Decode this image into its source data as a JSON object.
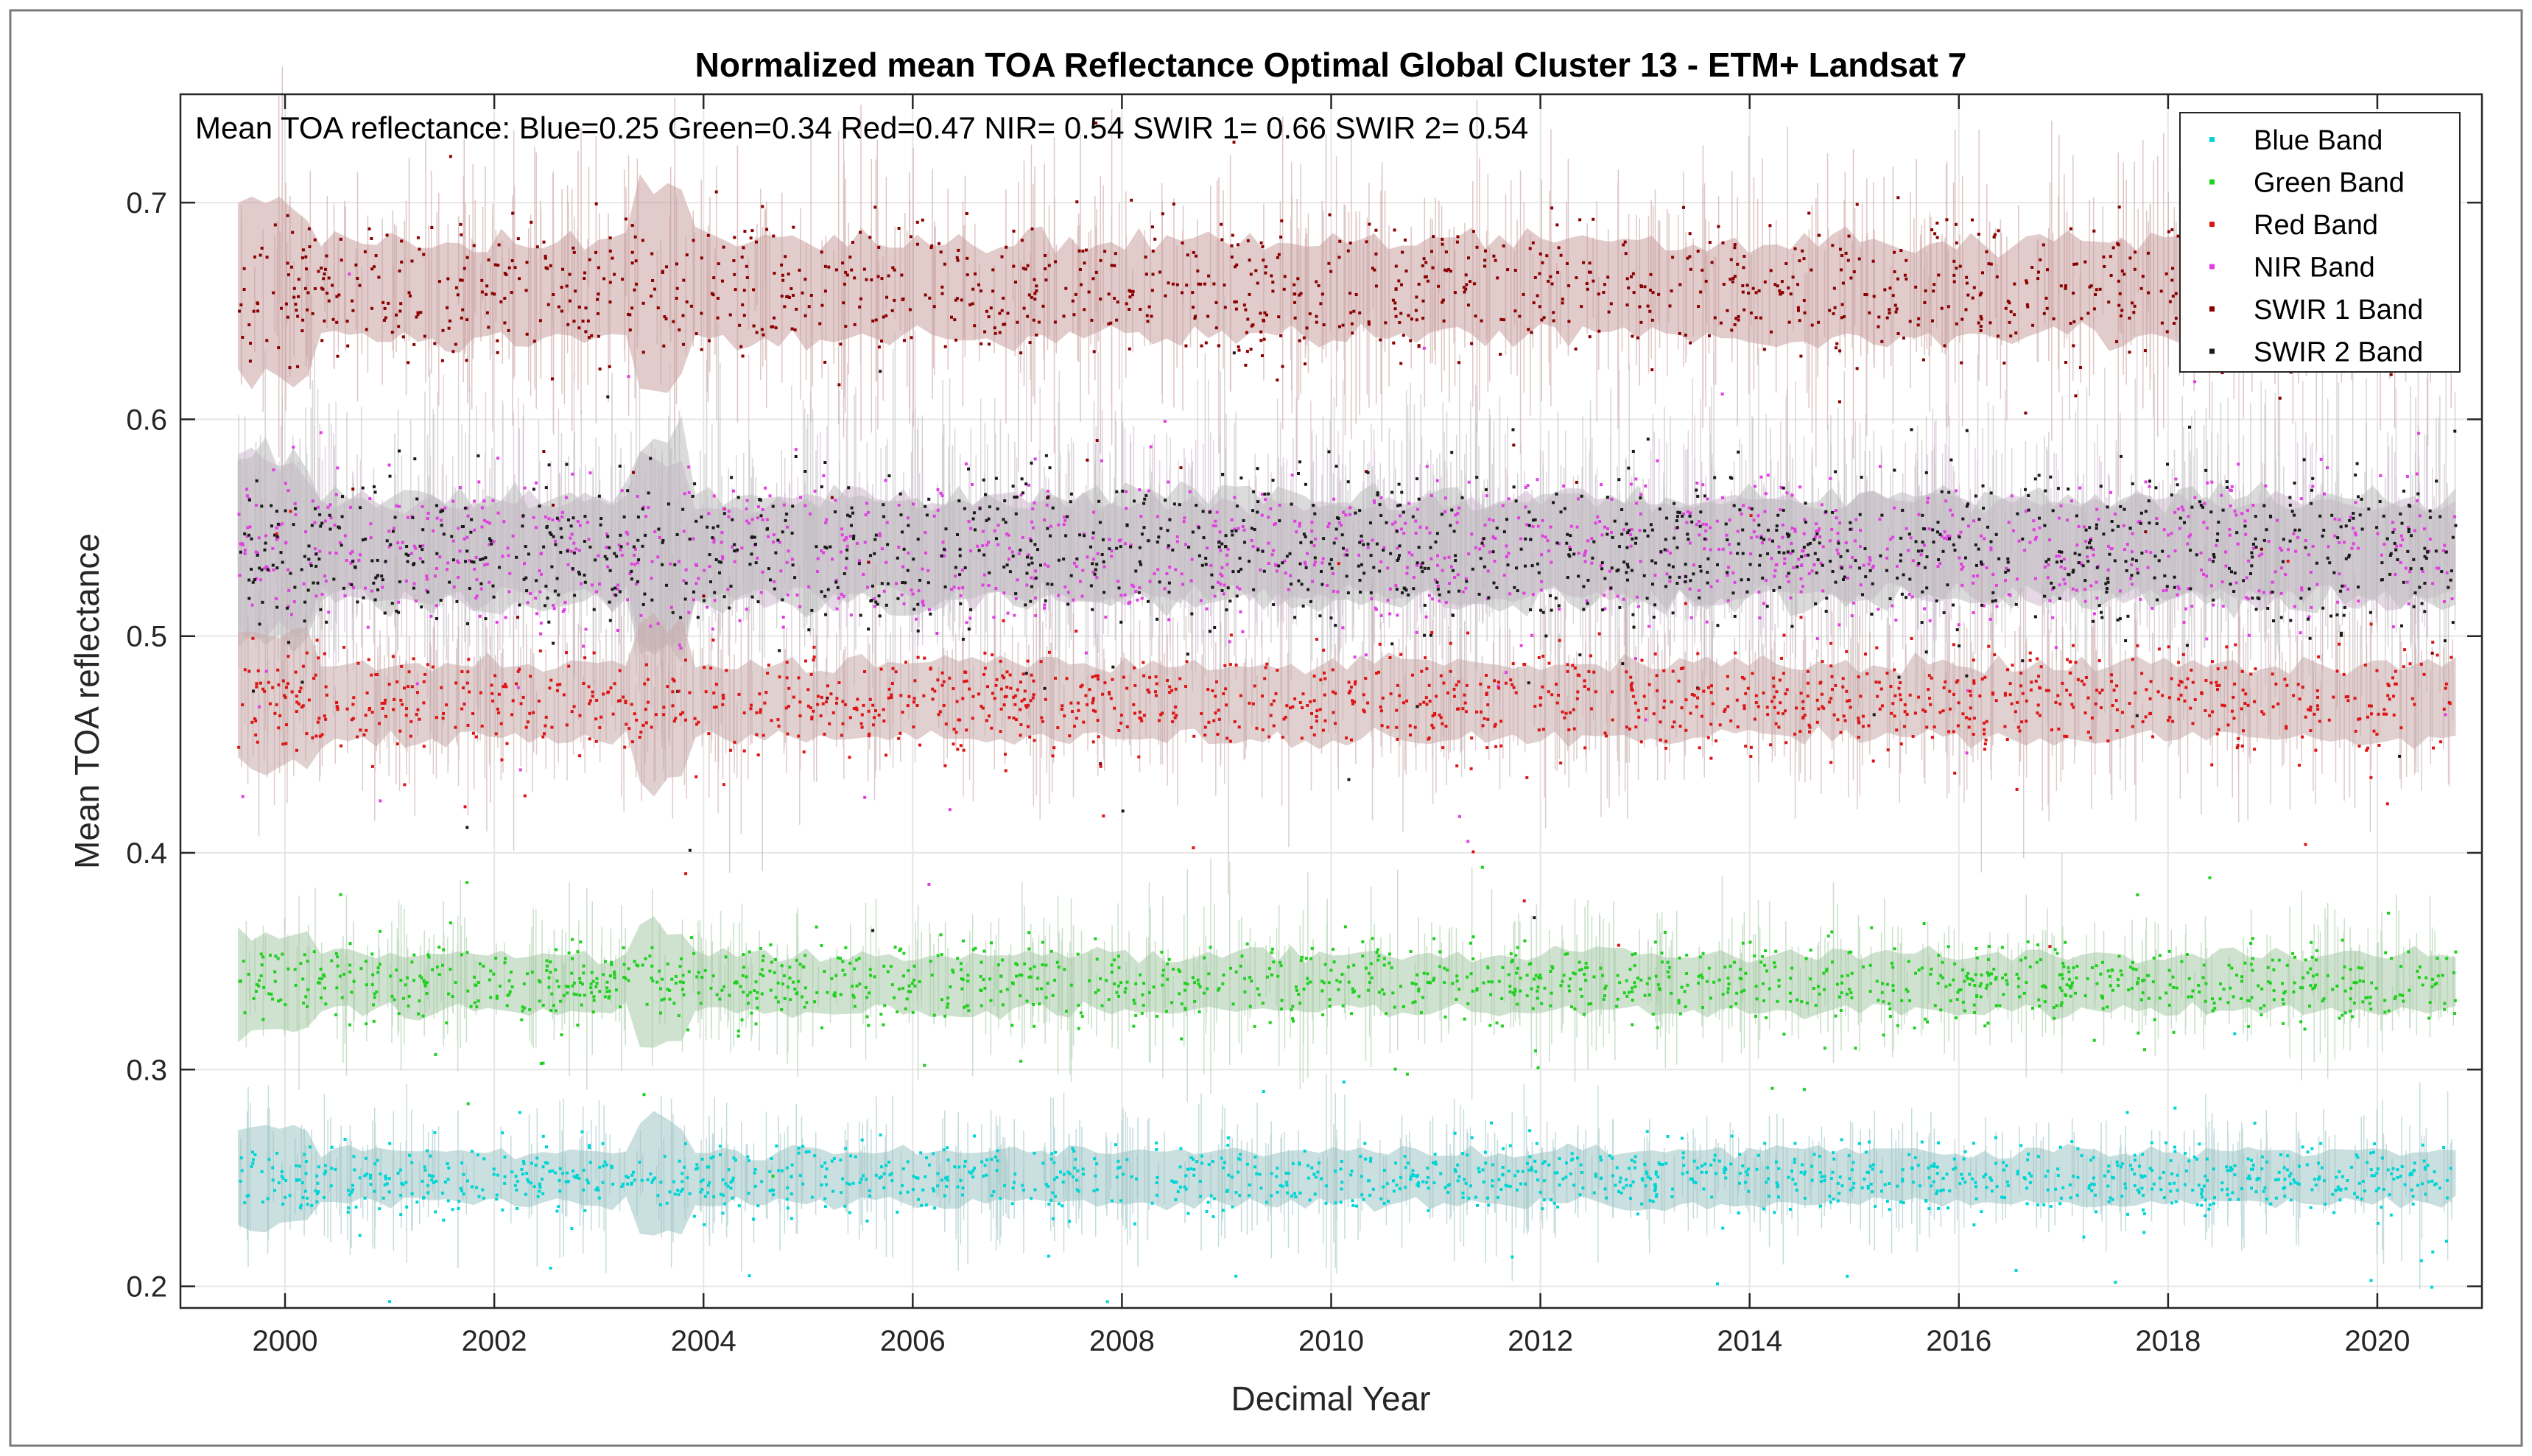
{
  "chart_data": {
    "type": "scatter",
    "title": "Normalized mean TOA Reflectance Optimal Global Cluster 13 -  ETM+ Landsat 7",
    "annotation": "Mean TOA reflectance: Blue=0.25  Green=0.34  Red=0.47  NIR= 0.54  SWIR 1= 0.66  SWIR 2= 0.54",
    "xlabel": "Decimal Year",
    "ylabel": "Mean TOA reflectance",
    "xlim": [
      1999.0,
      2021.0
    ],
    "ylim": [
      0.19,
      0.75
    ],
    "data_range": [
      1999.55,
      2020.75
    ],
    "grid": true,
    "legend_position": "top-right",
    "x_ticks": [
      2000,
      2002,
      2004,
      2006,
      2008,
      2010,
      2012,
      2014,
      2016,
      2018,
      2020
    ],
    "x_tick_labels": [
      "2000",
      "2002",
      "2004",
      "2006",
      "2008",
      "2010",
      "2012",
      "2014",
      "2016",
      "2018",
      "2020"
    ],
    "y_ticks": [
      0.2,
      0.3,
      0.4,
      0.5,
      0.6,
      0.7
    ],
    "y_tick_labels": [
      "0.2",
      "0.3",
      "0.4",
      "0.5",
      "0.6",
      "0.7"
    ],
    "series": [
      {
        "name": "Blue Band",
        "color": "#00d5d5",
        "band_color": "#9fc5c5",
        "mean": 0.25,
        "spread": 0.008,
        "band_halfwidth": 0.012,
        "draw_order": 1
      },
      {
        "name": "Green Band",
        "color": "#1fd01f",
        "band_color": "#a7cba7",
        "mean": 0.34,
        "spread": 0.009,
        "band_halfwidth": 0.013,
        "draw_order": 2
      },
      {
        "name": "Red Band",
        "color": "#dd1515",
        "band_color": "#c8a9a9",
        "mean": 0.47,
        "spread": 0.012,
        "band_halfwidth": 0.017,
        "draw_order": 6
      },
      {
        "name": "NIR Band",
        "color": "#e040e0",
        "band_color": "#cdb8cd",
        "mean": 0.54,
        "spread": 0.017,
        "band_halfwidth": 0.022,
        "draw_order": 4
      },
      {
        "name": "SWIR 1 Band",
        "color": "#8b0000",
        "band_color": "#c9a0a0",
        "mean": 0.66,
        "spread": 0.016,
        "band_halfwidth": 0.022,
        "draw_order": 3
      },
      {
        "name": "SWIR 2 Band",
        "color": "#1a1a1a",
        "band_color": "#bdbdbd",
        "mean": 0.54,
        "spread": 0.019,
        "band_halfwidth": 0.024,
        "draw_order": 5
      }
    ]
  }
}
